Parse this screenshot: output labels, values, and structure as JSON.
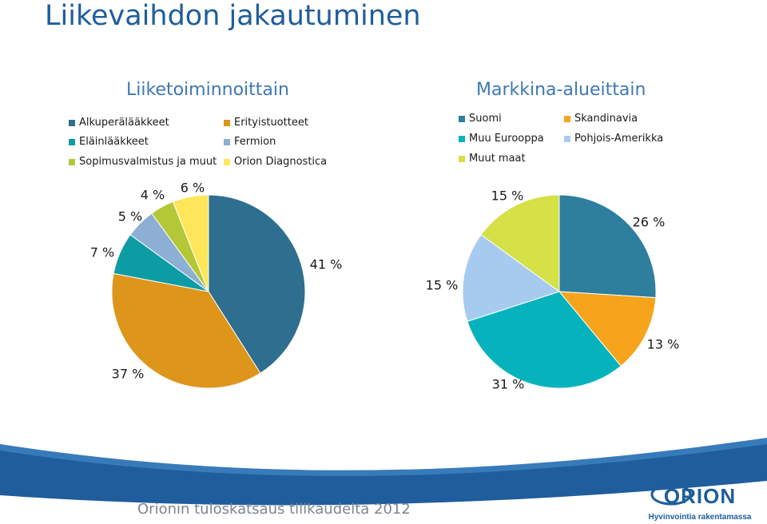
{
  "page": {
    "title": "Liikevaihdon jakautuminen",
    "footer": "Orionin tuloskatsaus tilikaudelta 2012",
    "logo_text": "ORION",
    "logo_tagline": "Hyvinvointia rakentamassa"
  },
  "chart_data": [
    {
      "type": "pie",
      "title": "Liiketoiminnoittain",
      "legend_position": "top",
      "slices": [
        {
          "label": "Alkuperälääkkeet",
          "value": 41,
          "display": "41 %",
          "color": "#2e6e8e"
        },
        {
          "label": "Erityistuotteet",
          "value": 37,
          "display": "37 %",
          "color": "#de951c"
        },
        {
          "label": "Eläinlääkkeet",
          "value": 7,
          "display": "7 %",
          "color": "#0e9ca4"
        },
        {
          "label": "Fermion",
          "value": 5,
          "display": "5 %",
          "color": "#8eafd4"
        },
        {
          "label": "Sopimusvalmistus ja muut",
          "value": 4,
          "display": "4 %",
          "color": "#b4c737"
        },
        {
          "label": "Orion Diagnostica",
          "value": 6,
          "display": "6 %",
          "color": "#fde65a"
        }
      ]
    },
    {
      "type": "pie",
      "title": "Markkina-alueittain",
      "legend_position": "top",
      "slices": [
        {
          "label": "Suomi",
          "value": 26,
          "display": "26 %",
          "color": "#2e7e9e"
        },
        {
          "label": "Skandinavia",
          "value": 13,
          "display": "13 %",
          "color": "#f7a41d"
        },
        {
          "label": "Muu Eurooppa",
          "value": 31,
          "display": "31 %",
          "color": "#06b3bd"
        },
        {
          "label": "Pohjois-Amerikka",
          "value": 15,
          "display": "15 %",
          "color": "#a7cbef"
        },
        {
          "label": "Muut maat",
          "value": 15,
          "display": "15 %",
          "color": "#d6e047"
        }
      ]
    }
  ]
}
